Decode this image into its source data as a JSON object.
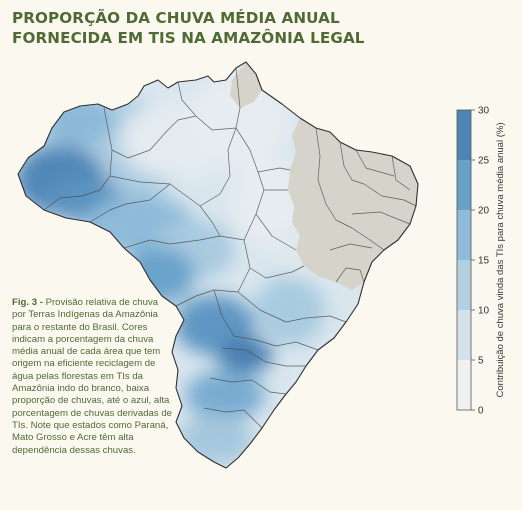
{
  "title": {
    "line1": "PROPORÇÃO DA CHUVA MÉDIA ANUAL",
    "line2": "FORNECIDA EM TIS NA AMAZÔNIA LEGAL"
  },
  "caption": {
    "fig_label": "Fig. 3 -",
    "text": " Provisão relativa de chuva por Terras Indígenas da Amazônia para o restante do Brasil. Cores indicam a porcentagem da chuva média anual de cada área que tem origem na eficiente reciclagem de água pelas florestas em TIs da Amazônia indo do branco, baixa proporção de chuvas, até o azul, alta porcentagem de chuvas derivadas de TIs. Note que estados como Paraná, Mato Grosso e Acre têm alta dependência dessas chuvas."
  },
  "legend": {
    "label": "Contribuição de chuva vinda das TIs para chuva média anual (%)",
    "ticks": [
      "0",
      "5",
      "10",
      "15",
      "20",
      "25",
      "30"
    ],
    "colors": [
      "#eef0f2",
      "#d4e2ec",
      "#b3d0e3",
      "#8dbbd9",
      "#68a2cb",
      "#4a85b6"
    ]
  },
  "colors": {
    "no_data": "#d6d3ca",
    "state_border": "#4a4a4a",
    "title": "#4f6a35",
    "background": "#fbf9ef"
  }
}
